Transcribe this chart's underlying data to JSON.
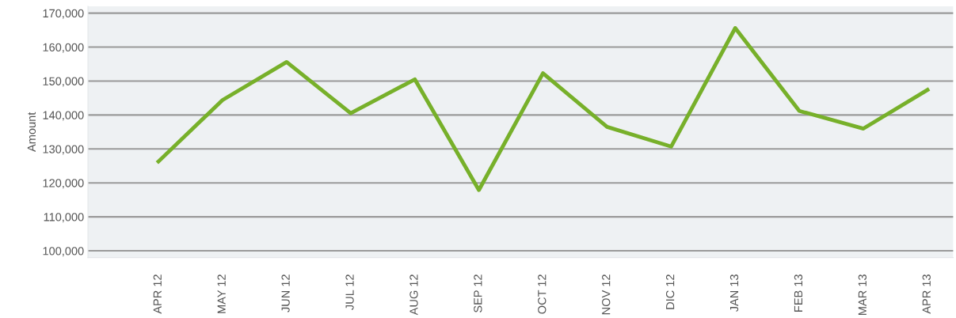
{
  "chart_data": {
    "type": "line",
    "ylabel": "Amount",
    "categories": [
      "APR 12",
      "MAY 12",
      "JUN 12",
      "JUL 12",
      "AUG 12",
      "SEP 12",
      "OCT 12",
      "NOV 12",
      "DIC 12",
      "JAN 13",
      "FEB 13",
      "MAR 13",
      "APR 13"
    ],
    "series": [
      {
        "color": "#77b02a",
        "values": [
          126300,
          144400,
          155600,
          140500,
          150500,
          117900,
          152300,
          136500,
          130700,
          165600,
          141200,
          136000,
          147400
        ]
      }
    ],
    "ylim": [
      98000,
      172000
    ],
    "yticks": [
      {
        "value": 100000,
        "label": "100,000"
      },
      {
        "value": 110000,
        "label": "110,000"
      },
      {
        "value": 120000,
        "label": "120,000"
      },
      {
        "value": 130000,
        "label": "130,000"
      },
      {
        "value": 140000,
        "label": "140,000"
      },
      {
        "value": 150000,
        "label": "150,000"
      },
      {
        "value": 160000,
        "label": "160,000"
      },
      {
        "value": 170000,
        "label": "170,000"
      }
    ],
    "grid": "y",
    "legend": false,
    "marker": "none",
    "line_style": "solid"
  }
}
